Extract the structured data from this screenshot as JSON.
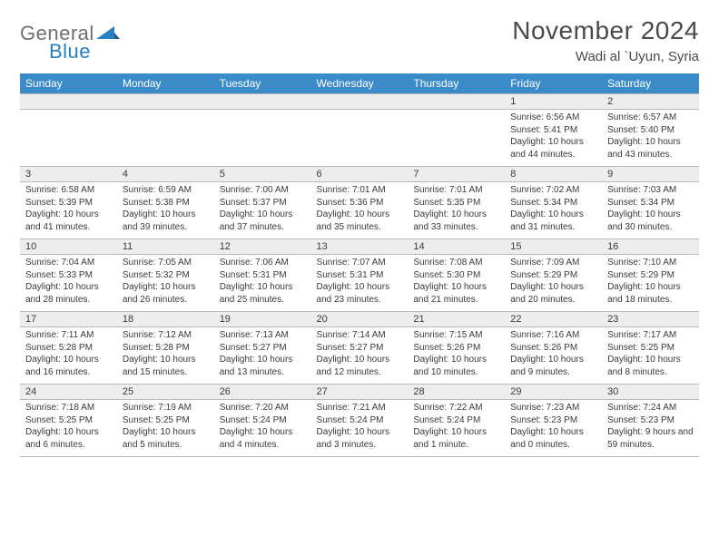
{
  "brand": {
    "name_a": "General",
    "name_b": "Blue"
  },
  "title": "November 2024",
  "location": "Wadi al `Uyun, Syria",
  "colors": {
    "header_bg": "#3b8bc9",
    "header_text": "#ffffff",
    "daynum_bg": "#ededed",
    "border": "#b8b8b8",
    "text": "#3a3a3a",
    "brand_gray": "#6f6f6f",
    "brand_blue": "#2a7fbf"
  },
  "day_labels": [
    "Sunday",
    "Monday",
    "Tuesday",
    "Wednesday",
    "Thursday",
    "Friday",
    "Saturday"
  ],
  "weeks": [
    [
      null,
      null,
      null,
      null,
      null,
      {
        "n": "1",
        "sr": "6:56 AM",
        "ss": "5:41 PM",
        "dl": "10 hours and 44 minutes."
      },
      {
        "n": "2",
        "sr": "6:57 AM",
        "ss": "5:40 PM",
        "dl": "10 hours and 43 minutes."
      }
    ],
    [
      {
        "n": "3",
        "sr": "6:58 AM",
        "ss": "5:39 PM",
        "dl": "10 hours and 41 minutes."
      },
      {
        "n": "4",
        "sr": "6:59 AM",
        "ss": "5:38 PM",
        "dl": "10 hours and 39 minutes."
      },
      {
        "n": "5",
        "sr": "7:00 AM",
        "ss": "5:37 PM",
        "dl": "10 hours and 37 minutes."
      },
      {
        "n": "6",
        "sr": "7:01 AM",
        "ss": "5:36 PM",
        "dl": "10 hours and 35 minutes."
      },
      {
        "n": "7",
        "sr": "7:01 AM",
        "ss": "5:35 PM",
        "dl": "10 hours and 33 minutes."
      },
      {
        "n": "8",
        "sr": "7:02 AM",
        "ss": "5:34 PM",
        "dl": "10 hours and 31 minutes."
      },
      {
        "n": "9",
        "sr": "7:03 AM",
        "ss": "5:34 PM",
        "dl": "10 hours and 30 minutes."
      }
    ],
    [
      {
        "n": "10",
        "sr": "7:04 AM",
        "ss": "5:33 PM",
        "dl": "10 hours and 28 minutes."
      },
      {
        "n": "11",
        "sr": "7:05 AM",
        "ss": "5:32 PM",
        "dl": "10 hours and 26 minutes."
      },
      {
        "n": "12",
        "sr": "7:06 AM",
        "ss": "5:31 PM",
        "dl": "10 hours and 25 minutes."
      },
      {
        "n": "13",
        "sr": "7:07 AM",
        "ss": "5:31 PM",
        "dl": "10 hours and 23 minutes."
      },
      {
        "n": "14",
        "sr": "7:08 AM",
        "ss": "5:30 PM",
        "dl": "10 hours and 21 minutes."
      },
      {
        "n": "15",
        "sr": "7:09 AM",
        "ss": "5:29 PM",
        "dl": "10 hours and 20 minutes."
      },
      {
        "n": "16",
        "sr": "7:10 AM",
        "ss": "5:29 PM",
        "dl": "10 hours and 18 minutes."
      }
    ],
    [
      {
        "n": "17",
        "sr": "7:11 AM",
        "ss": "5:28 PM",
        "dl": "10 hours and 16 minutes."
      },
      {
        "n": "18",
        "sr": "7:12 AM",
        "ss": "5:28 PM",
        "dl": "10 hours and 15 minutes."
      },
      {
        "n": "19",
        "sr": "7:13 AM",
        "ss": "5:27 PM",
        "dl": "10 hours and 13 minutes."
      },
      {
        "n": "20",
        "sr": "7:14 AM",
        "ss": "5:27 PM",
        "dl": "10 hours and 12 minutes."
      },
      {
        "n": "21",
        "sr": "7:15 AM",
        "ss": "5:26 PM",
        "dl": "10 hours and 10 minutes."
      },
      {
        "n": "22",
        "sr": "7:16 AM",
        "ss": "5:26 PM",
        "dl": "10 hours and 9 minutes."
      },
      {
        "n": "23",
        "sr": "7:17 AM",
        "ss": "5:25 PM",
        "dl": "10 hours and 8 minutes."
      }
    ],
    [
      {
        "n": "24",
        "sr": "7:18 AM",
        "ss": "5:25 PM",
        "dl": "10 hours and 6 minutes."
      },
      {
        "n": "25",
        "sr": "7:19 AM",
        "ss": "5:25 PM",
        "dl": "10 hours and 5 minutes."
      },
      {
        "n": "26",
        "sr": "7:20 AM",
        "ss": "5:24 PM",
        "dl": "10 hours and 4 minutes."
      },
      {
        "n": "27",
        "sr": "7:21 AM",
        "ss": "5:24 PM",
        "dl": "10 hours and 3 minutes."
      },
      {
        "n": "28",
        "sr": "7:22 AM",
        "ss": "5:24 PM",
        "dl": "10 hours and 1 minute."
      },
      {
        "n": "29",
        "sr": "7:23 AM",
        "ss": "5:23 PM",
        "dl": "10 hours and 0 minutes."
      },
      {
        "n": "30",
        "sr": "7:24 AM",
        "ss": "5:23 PM",
        "dl": "9 hours and 59 minutes."
      }
    ]
  ],
  "labels": {
    "sunrise": "Sunrise: ",
    "sunset": "Sunset: ",
    "daylight": "Daylight: "
  }
}
